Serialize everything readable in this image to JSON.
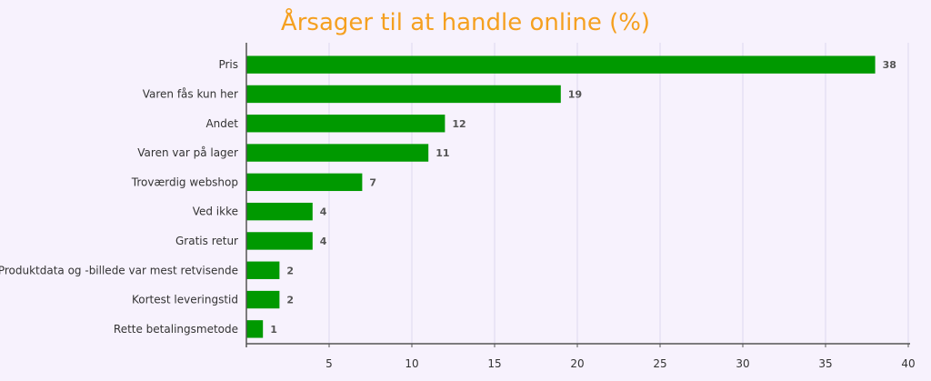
{
  "chart_data": {
    "type": "bar",
    "orientation": "horizontal",
    "title": "Årsager til at handle online (%)",
    "xlabel": "",
    "ylabel": "",
    "categories": [
      "Pris",
      "Varen fås kun her",
      "Andet",
      "Varen var på lager",
      "Troværdig webshop",
      "Ved ikke",
      "Gratis retur",
      "Produktdata og -billede var mest retvisende",
      "Kortest leveringstid",
      "Rette betalingsmetode"
    ],
    "values": [
      38,
      19,
      12,
      11,
      7,
      4,
      4,
      2,
      2,
      1
    ],
    "xlim": [
      0,
      40
    ],
    "xticks": [
      5,
      10,
      15,
      20,
      25,
      30,
      35,
      40
    ],
    "grid": true,
    "data_labels": true,
    "colors": {
      "bar": "#009900",
      "title": "#f5a020",
      "grid": "#ddd8ee",
      "axis": "#555555",
      "label": "#333333",
      "value_label": "#555555",
      "background": "#f7f2fd"
    }
  }
}
